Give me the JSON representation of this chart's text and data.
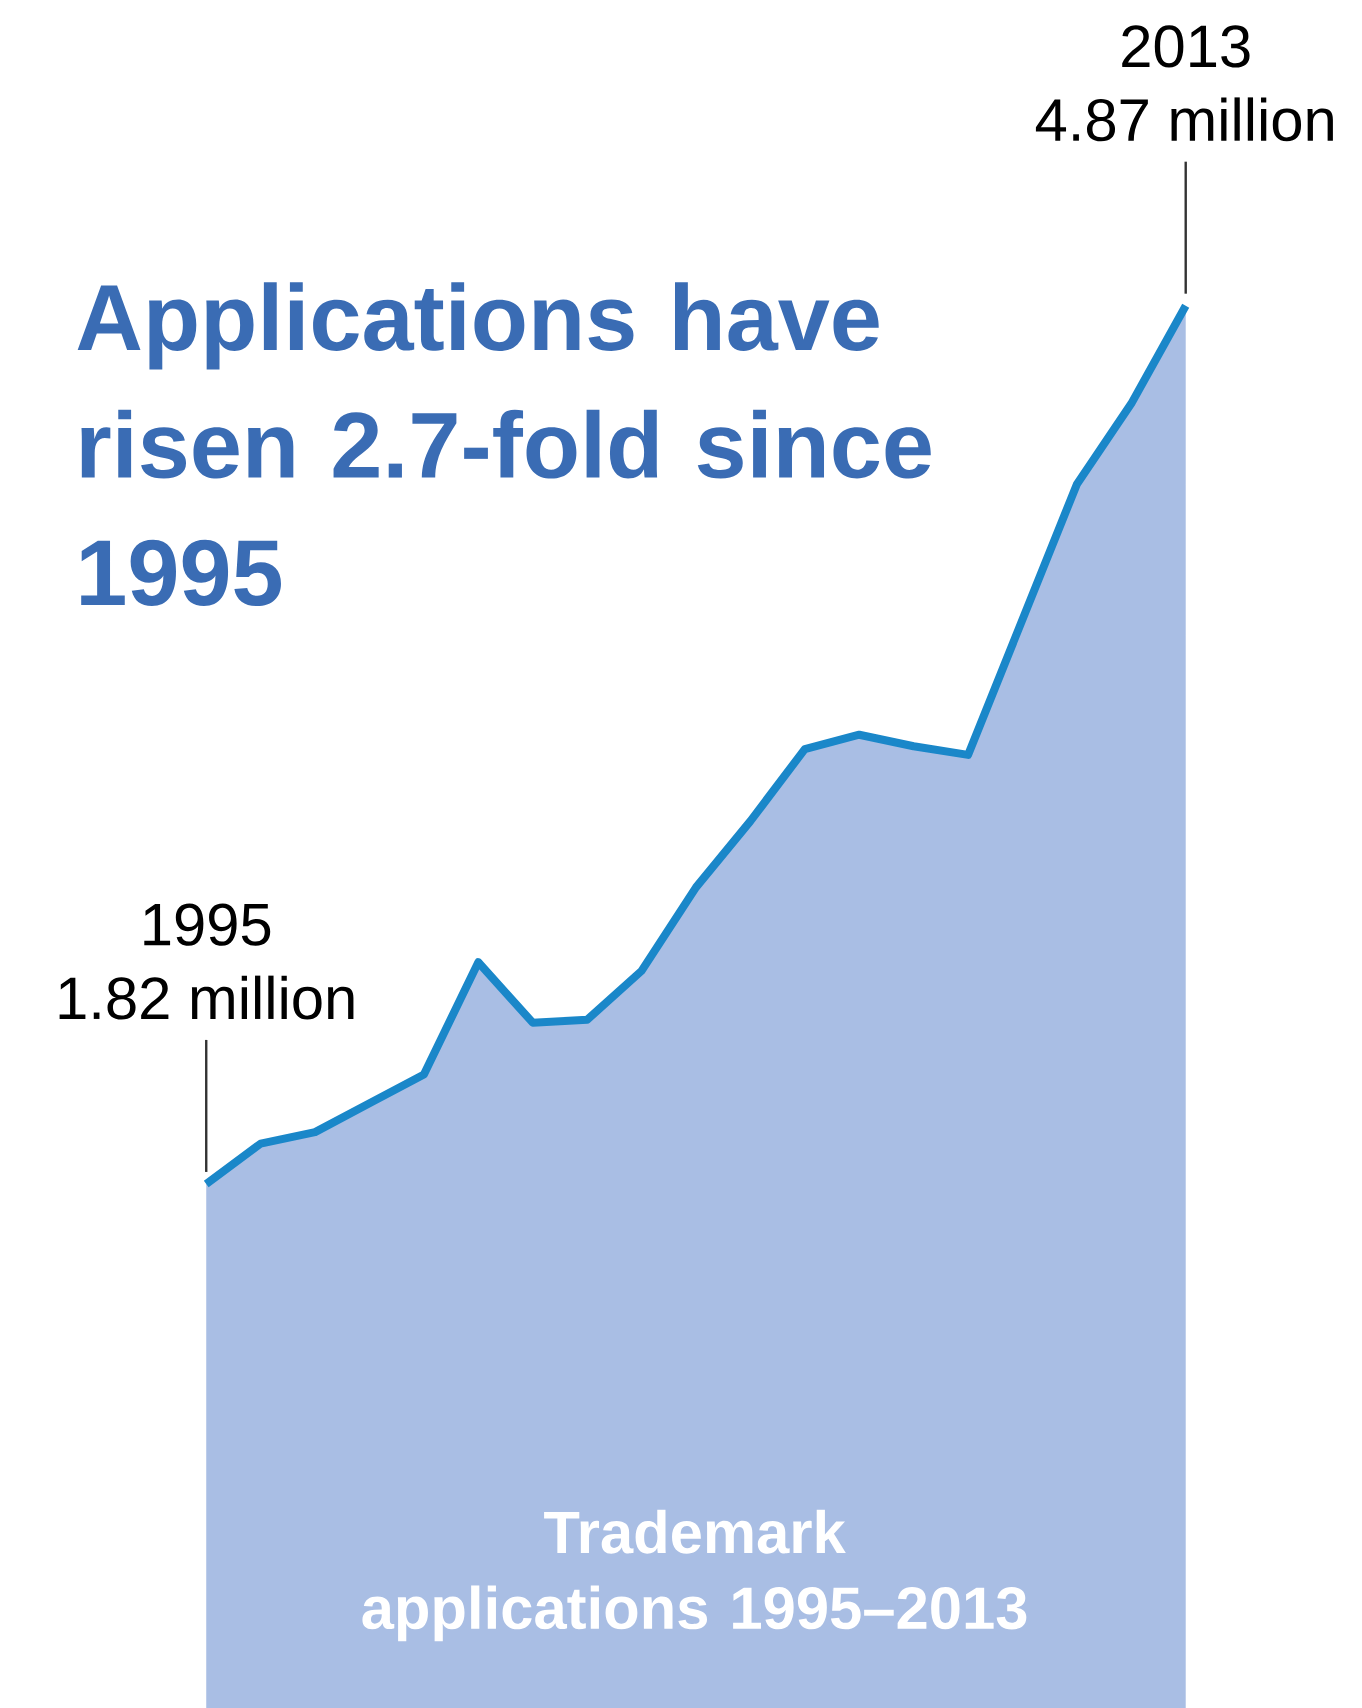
{
  "chart_data": {
    "type": "area",
    "title": "Applications have risen 2.7-fold since 1995",
    "categories": [
      null,
      null,
      null,
      null,
      null,
      null,
      null,
      null,
      null,
      null,
      null,
      null,
      null,
      null,
      null,
      null,
      null,
      null,
      null
    ],
    "series": [
      {
        "color": "#1a87c9",
        "values": [
          1.82,
          1.96,
          2.0,
          2.1,
          2.2,
          2.59,
          2.38,
          2.39,
          2.56,
          2.85,
          3.08,
          3.33,
          3.38,
          3.34,
          3.31,
          3.78,
          4.25,
          4.53,
          4.87
        ],
        "value_labels": [
          "1.82 million",
          null,
          null,
          null,
          null,
          null,
          null,
          null,
          null,
          null,
          null,
          null,
          null,
          null,
          null,
          null,
          null,
          null,
          "4.87 million"
        ]
      }
    ],
    "annotations": [
      "1995",
      "2013",
      "Trademark applications 1995–2013"
    ]
  }
}
